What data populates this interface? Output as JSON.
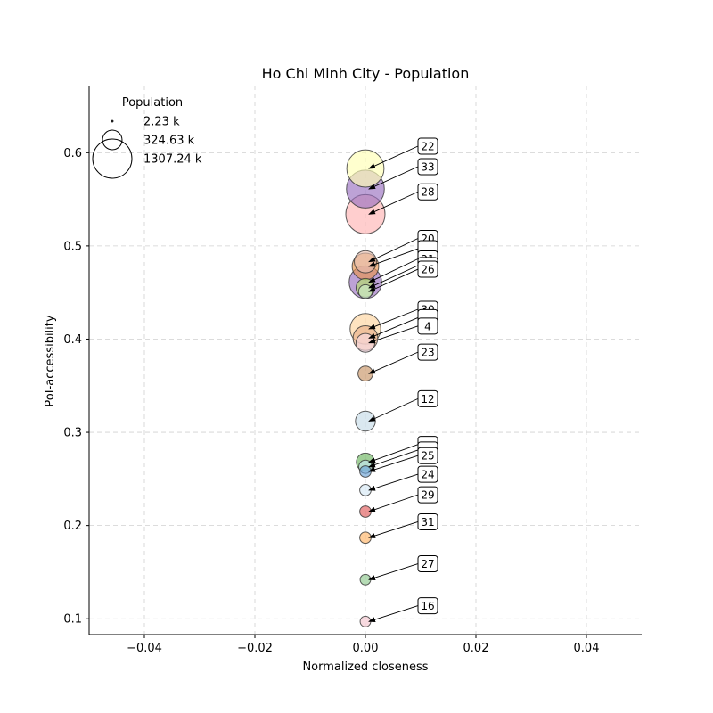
{
  "chart_data": {
    "type": "scatter",
    "title": "Ho Chi Minh City - Population",
    "xlabel": "Normalized closeness",
    "ylabel": "PoI-accessibility",
    "xlim": [
      -0.05,
      0.05
    ],
    "ylim": [
      0.083,
      0.672
    ],
    "xticks": [
      "−0.04",
      "−0.02",
      "0.00",
      "0.02",
      "0.04"
    ],
    "xtick_values": [
      -0.04,
      -0.02,
      0.0,
      0.02,
      0.04
    ],
    "yticks": [
      "0.1",
      "0.2",
      "0.3",
      "0.4",
      "0.5",
      "0.6"
    ],
    "ytick_values": [
      0.1,
      0.2,
      0.3,
      0.4,
      0.5,
      0.6
    ],
    "grid": true,
    "legend": {
      "title": "Population",
      "placement": "top-left",
      "entries": [
        {
          "label": "2.23 k",
          "population_k": 2.23
        },
        {
          "label": "324.63 k",
          "population_k": 324.63
        },
        {
          "label": "1307.24 k",
          "population_k": 1307.24
        }
      ]
    },
    "points": [
      {
        "label": "22",
        "x": 0.0,
        "y": 0.583,
        "population_k": 1180,
        "color": "#ffffb3"
      },
      {
        "label": "33",
        "x": 0.0,
        "y": 0.561,
        "population_k": 1220,
        "color": "#9970c0"
      },
      {
        "label": "28",
        "x": 0.0,
        "y": 0.534,
        "population_k": 1307.24,
        "color": "#ffb3b3"
      },
      {
        "label": "20",
        "x": 0.0,
        "y": 0.483,
        "population_k": 420,
        "color": "#e8c0b0"
      },
      {
        "label": "",
        "x": 0.0,
        "y": 0.478,
        "population_k": 600,
        "color": "#e8954f"
      },
      {
        "label": "21",
        "x": 0.0,
        "y": 0.461,
        "population_k": 900,
        "color": "#9970c0"
      },
      {
        "label": "",
        "x": 0.0,
        "y": 0.455,
        "population_k": 300,
        "color": "#b3de69"
      },
      {
        "label": "26",
        "x": 0.0,
        "y": 0.451,
        "population_k": 160,
        "color": "#ccebc5"
      },
      {
        "label": "30",
        "x": 0.0,
        "y": 0.411,
        "population_k": 800,
        "color": "#fdd49e"
      },
      {
        "label": "",
        "x": 0.0,
        "y": 0.401,
        "population_k": 520,
        "color": "#e8b08a"
      },
      {
        "label": "4",
        "x": 0.0,
        "y": 0.396,
        "population_k": 300,
        "color": "#f7d9e0"
      },
      {
        "label": "23",
        "x": 0.0,
        "y": 0.363,
        "population_k": 190,
        "color": "#c79466"
      },
      {
        "label": "12",
        "x": 0.0,
        "y": 0.312,
        "population_k": 340,
        "color": "#c6dbe8"
      },
      {
        "label": "",
        "x": 0.0,
        "y": 0.268,
        "population_k": 280,
        "color": "#6bb35f"
      },
      {
        "label": "",
        "x": 0.0,
        "y": 0.263,
        "population_k": 150,
        "color": "#c6e8f0"
      },
      {
        "label": "25",
        "x": 0.0,
        "y": 0.258,
        "population_k": 110,
        "color": "#6ba3d6"
      },
      {
        "label": "24",
        "x": 0.0,
        "y": 0.238,
        "population_k": 110,
        "color": "#d6e8f5"
      },
      {
        "label": "29",
        "x": 0.0,
        "y": 0.215,
        "population_k": 110,
        "color": "#e05a5a"
      },
      {
        "label": "31",
        "x": 0.0,
        "y": 0.187,
        "population_k": 110,
        "color": "#ffb366"
      },
      {
        "label": "27",
        "x": 0.0,
        "y": 0.142,
        "population_k": 95,
        "color": "#8fc98f"
      },
      {
        "label": "16",
        "x": 0.0,
        "y": 0.097,
        "population_k": 95,
        "color": "#f5c6d0"
      }
    ],
    "annotations": [
      {
        "label": "22",
        "text_y": 0.607
      },
      {
        "label": "33",
        "text_y": 0.585
      },
      {
        "label": "28",
        "text_y": 0.558
      },
      {
        "label": "20",
        "text_y": 0.508
      },
      {
        "label": "",
        "text_y": 0.497
      },
      {
        "label": "21",
        "text_y": 0.486
      },
      {
        "label": "",
        "text_y": 0.479
      },
      {
        "label": "26",
        "text_y": 0.475
      },
      {
        "label": "30",
        "text_y": 0.432
      },
      {
        "label": "",
        "text_y": 0.423
      },
      {
        "label": "4",
        "text_y": 0.414
      },
      {
        "label": "23",
        "text_y": 0.386
      },
      {
        "label": "12",
        "text_y": 0.336
      },
      {
        "label": "",
        "text_y": 0.287
      },
      {
        "label": "",
        "text_y": 0.281
      },
      {
        "label": "25",
        "text_y": 0.275
      },
      {
        "label": "24",
        "text_y": 0.255
      },
      {
        "label": "29",
        "text_y": 0.233
      },
      {
        "label": "31",
        "text_y": 0.204
      },
      {
        "label": "27",
        "text_y": 0.159
      },
      {
        "label": "16",
        "text_y": 0.114
      }
    ]
  }
}
